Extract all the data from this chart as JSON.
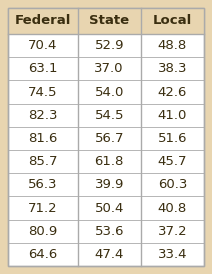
{
  "headers": [
    "Federal",
    "State",
    "Local"
  ],
  "rows": [
    [
      70.4,
      52.9,
      48.8
    ],
    [
      63.1,
      37.0,
      38.3
    ],
    [
      74.5,
      54.0,
      42.6
    ],
    [
      82.3,
      54.5,
      41.0
    ],
    [
      81.6,
      56.7,
      51.6
    ],
    [
      85.7,
      61.8,
      45.7
    ],
    [
      56.3,
      39.9,
      60.3
    ],
    [
      71.2,
      50.4,
      40.8
    ],
    [
      80.9,
      53.6,
      37.2
    ],
    [
      64.6,
      47.4,
      33.4
    ]
  ],
  "header_bg": "#e8d5b0",
  "row_bg": "#ffffff",
  "border_color": "#aaaaaa",
  "header_text_color": "#3a2e10",
  "row_text_color": "#3a2e10",
  "outer_bg": "#e8d5b0",
  "header_fontsize": 9.5,
  "data_fontsize": 9.5
}
